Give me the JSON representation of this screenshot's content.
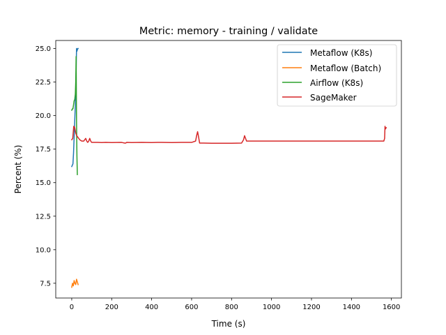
{
  "chart_data": {
    "type": "line",
    "title": "Metric: memory - training / validate",
    "xlabel": "Time (s)",
    "ylabel": "Percent (%)",
    "xlim": [
      -80,
      1650
    ],
    "ylim": [
      6.4,
      25.6
    ],
    "x_ticks": [
      0,
      200,
      400,
      600,
      800,
      1000,
      1200,
      1400,
      1600
    ],
    "x_tick_labels": [
      "0",
      "200",
      "400",
      "600",
      "800",
      "1000",
      "1200",
      "1400",
      "1600"
    ],
    "y_ticks": [
      7.5,
      10.0,
      12.5,
      15.0,
      17.5,
      20.0,
      22.5,
      25.0
    ],
    "y_tick_labels": [
      "7.5",
      "10.0",
      "12.5",
      "15.0",
      "17.5",
      "20.0",
      "22.5",
      "25.0"
    ],
    "grid": false,
    "legend_position": "top-right",
    "series": [
      {
        "name": "Metaflow (K8s)",
        "color": "#1f77b4",
        "x": [
          0,
          3,
          6,
          9,
          12,
          15,
          18,
          21,
          24,
          26,
          28,
          30,
          32
        ],
        "y": [
          16.2,
          16.3,
          16.4,
          17.2,
          18.4,
          19.6,
          20.8,
          22.5,
          25.0,
          24.8,
          24.9,
          25.0,
          25.0
        ]
      },
      {
        "name": "Metaflow (Batch)",
        "color": "#ff7f0e",
        "x": [
          0,
          4,
          8,
          12,
          16,
          20,
          24,
          28,
          32
        ],
        "y": [
          7.2,
          7.5,
          7.3,
          7.7,
          7.5,
          7.4,
          7.8,
          7.6,
          7.4
        ]
      },
      {
        "name": "Airflow (K8s)",
        "color": "#2ca02c",
        "x": [
          0,
          3,
          6,
          9,
          12,
          15,
          18,
          20,
          22,
          24,
          26,
          28
        ],
        "y": [
          20.4,
          20.5,
          20.5,
          20.8,
          21.1,
          21.2,
          21.6,
          22.5,
          24.4,
          19.5,
          17.0,
          15.6
        ]
      },
      {
        "name": "SageMaker",
        "color": "#d62728",
        "x": [
          0,
          5,
          10,
          15,
          20,
          25,
          30,
          35,
          40,
          50,
          60,
          65,
          70,
          75,
          80,
          85,
          90,
          95,
          100,
          110,
          120,
          130,
          150,
          170,
          200,
          250,
          265,
          270,
          275,
          300,
          350,
          400,
          430,
          450,
          500,
          550,
          600,
          620,
          625,
          630,
          635,
          640,
          660,
          700,
          750,
          800,
          850,
          860,
          865,
          870,
          875,
          880,
          900,
          1000,
          1100,
          1200,
          1300,
          1400,
          1500,
          1550,
          1562,
          1566,
          1568,
          1570,
          1574
        ],
        "y": [
          18.2,
          18.3,
          19.2,
          19.1,
          18.7,
          18.5,
          18.4,
          18.3,
          18.2,
          18.1,
          18.1,
          18.2,
          18.3,
          18.1,
          18.0,
          18.1,
          18.3,
          18.1,
          18.0,
          18.0,
          18.0,
          18.0,
          17.99,
          18.0,
          17.99,
          18.0,
          17.95,
          17.95,
          18.0,
          17.99,
          18.0,
          17.99,
          18.0,
          18.0,
          17.99,
          18.0,
          18.0,
          18.1,
          18.5,
          18.8,
          18.4,
          17.95,
          17.95,
          17.94,
          17.94,
          17.94,
          17.95,
          18.2,
          18.5,
          18.3,
          18.1,
          18.1,
          18.1,
          18.1,
          18.1,
          18.1,
          18.1,
          18.1,
          18.1,
          18.1,
          18.1,
          18.3,
          19.2,
          19.0,
          19.1
        ]
      }
    ]
  }
}
